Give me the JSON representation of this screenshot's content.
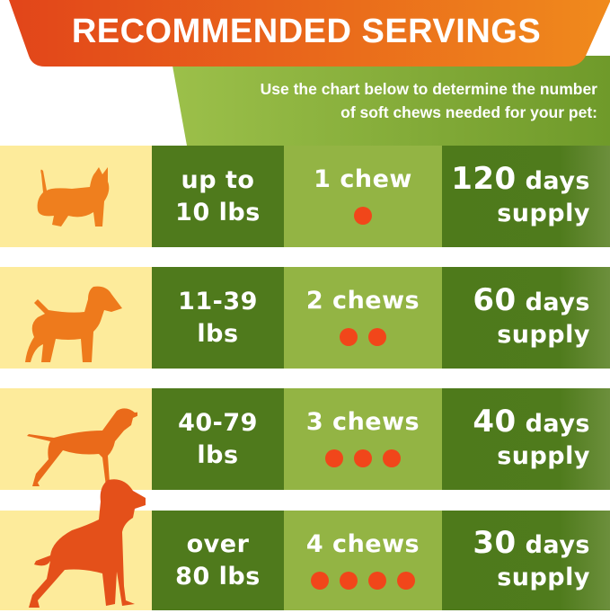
{
  "header": {
    "title": "RECOMMENDED SERVINGS",
    "subtitle_line1": "Use the chart below to determine the number",
    "subtitle_line2": "of soft chews needed for your pet:"
  },
  "colors": {
    "orange_banner": "#e55318",
    "green_banner": "#8cb23f",
    "weight_cell": "#4f7a1c",
    "chew_cell": "#93b444",
    "dog_cell": "#fdeb9b",
    "chew_dot": "#f1461a"
  },
  "rows": [
    {
      "icon": "small-dog-icon",
      "weight1": "up to",
      "weight2": "10 lbs",
      "chews": "1 chew",
      "dot_count": 1,
      "days": "120",
      "days_unit": "days",
      "supply": "supply"
    },
    {
      "icon": "terrier-dog-icon",
      "weight1": "11-39",
      "weight2": "lbs",
      "chews": "2 chews",
      "dot_count": 2,
      "days": "60",
      "days_unit": "days",
      "supply": "supply"
    },
    {
      "icon": "pointer-dog-icon",
      "weight1": "40-79",
      "weight2": "lbs",
      "chews": "3 chews",
      "dot_count": 3,
      "days": "40",
      "days_unit": "days",
      "supply": "supply"
    },
    {
      "icon": "great-dane-dog-icon",
      "weight1": "over",
      "weight2": "80 lbs",
      "chews": "4 chews",
      "dot_count": 4,
      "days": "30",
      "days_unit": "days",
      "supply": "supply"
    }
  ]
}
